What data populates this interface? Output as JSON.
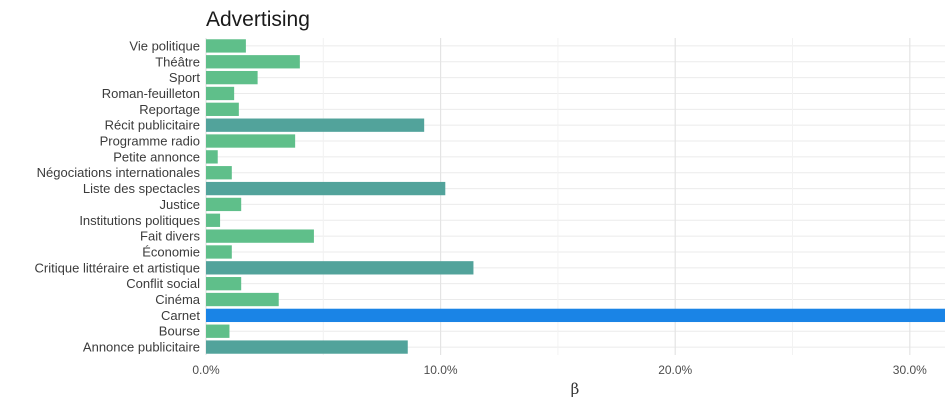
{
  "chart_data": {
    "type": "bar",
    "orientation": "horizontal",
    "title": "Advertising",
    "xlabel": "β",
    "ylabel": "",
    "xlim": [
      0,
      31.5
    ],
    "x_ticks": [
      0,
      10,
      20,
      30
    ],
    "x_tick_labels": [
      "0.0%",
      "10.0%",
      "20.0%",
      "30.0%"
    ],
    "grid": true,
    "legend": "none",
    "categories": [
      "Vie politique",
      "Théâtre",
      "Sport",
      "Roman-feuilleton",
      "Reportage",
      "Récit publicitaire",
      "Programme radio",
      "Petite annonce",
      "Négociations internationales",
      "Liste des spectacles",
      "Justice",
      "Institutions politiques",
      "Fait divers",
      "Économie",
      "Critique littéraire et artistique",
      "Conflit social",
      "Cinéma",
      "Carnet",
      "Bourse",
      "Annonce publicitaire"
    ],
    "values": [
      1.7,
      4.0,
      2.2,
      1.2,
      1.4,
      9.3,
      3.8,
      0.5,
      1.1,
      10.2,
      1.5,
      0.6,
      4.6,
      1.1,
      11.4,
      1.5,
      3.1,
      31.6,
      1.0,
      8.6
    ],
    "colors": {
      "low": "#5fbf8a",
      "mid": "#52a39b",
      "highlight": "#1a84e6"
    }
  }
}
